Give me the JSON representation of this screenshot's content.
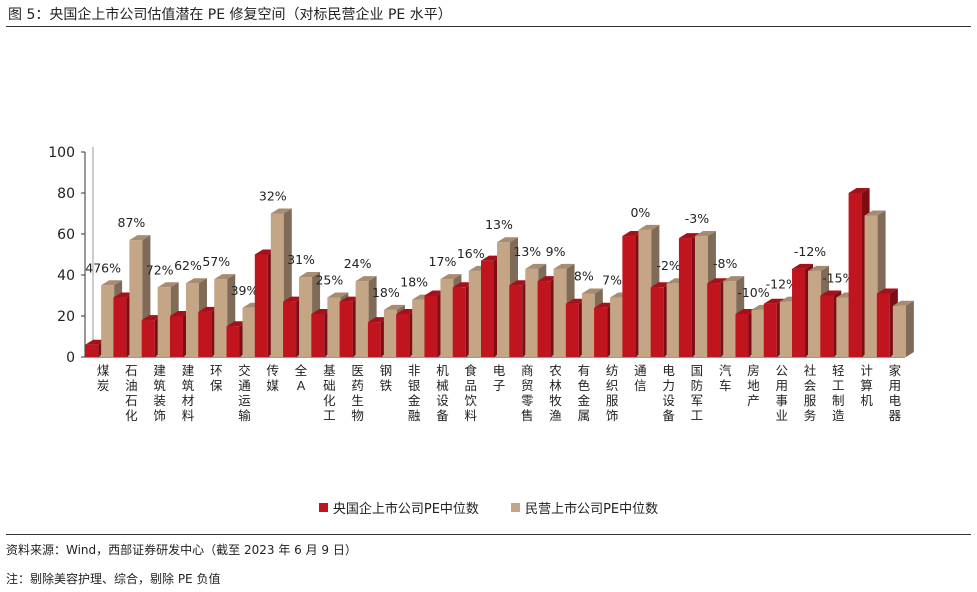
{
  "header": {
    "title": "图 5：央国企上市公司估值潜在 PE 修复空间（对标民营企业 PE 水平）"
  },
  "footer": {
    "source": "资料来源：Wind，西部证券研发中心（截至 2023 年 6 月 9 日）",
    "note": "注：剔除美容护理、综合，剔除 PE 负值"
  },
  "colors": {
    "soe": "#c0141e",
    "private": "#c4a586"
  },
  "chart_data": {
    "type": "bar",
    "categories": [
      "煤炭",
      "石油石化",
      "建筑装饰",
      "建筑材料",
      "环保",
      "交通运输",
      "传媒",
      "全A",
      "基础化工",
      "医药生物",
      "钢铁",
      "非银金融",
      "机械设备",
      "食品饮料",
      "电子",
      "商贸零售",
      "农林牧渔",
      "有色金属",
      "纺织服饰",
      "通信",
      "电力设备",
      "国防军工",
      "汽车",
      "房地产",
      "公用事业",
      "社会服务",
      "轻工制造",
      "计算机",
      "家用电器"
    ],
    "series": [
      {
        "name": "央国企上市公司PE中位数",
        "values": [
          6,
          29,
          18,
          20,
          22,
          15,
          50,
          27,
          21,
          27,
          17,
          21,
          30,
          34,
          47,
          35,
          37,
          26,
          24,
          59,
          34,
          58,
          36,
          21,
          26,
          43,
          30,
          80,
          31
        ]
      },
      {
        "name": "民营上市公司PE中位数",
        "values": [
          35,
          57,
          34,
          36,
          38,
          24,
          70,
          39,
          29,
          37,
          23,
          28,
          38,
          42,
          56,
          43,
          43,
          31,
          29,
          62,
          36,
          59,
          37,
          23,
          27,
          42,
          29,
          69,
          25
        ]
      }
    ],
    "annotations": [
      "476%",
      "87%",
      "72%",
      "62%",
      "57%",
      "39%",
      "32%",
      "31%",
      "25%",
      "24%",
      "18%",
      "18%",
      "17%",
      "16%",
      "13%",
      "13%",
      "9%",
      "8%",
      "7%",
      "0%",
      "-2%",
      "-3%",
      "-8%",
      "-10%",
      "-12%",
      "-12%",
      "-15%",
      "",
      ""
    ],
    "ylim": [
      0,
      100
    ],
    "yticks": [
      "0",
      "20",
      "40",
      "60",
      "80",
      "100"
    ],
    "grid": false,
    "legend_position": "bottom"
  }
}
